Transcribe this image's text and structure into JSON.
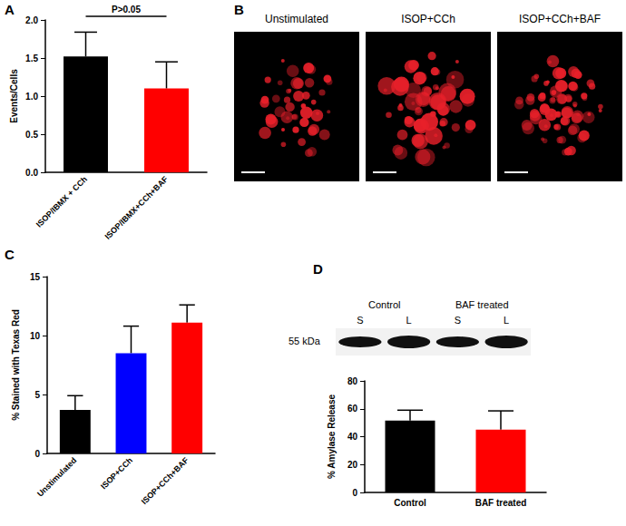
{
  "chart_data": [
    {
      "type": "bar",
      "panel": "A",
      "categories": [
        "ISOP/IBMX + CCh",
        "ISOP/IBMX+CCh+BAF"
      ],
      "values": [
        1.52,
        1.1
      ],
      "errors": [
        0.32,
        0.35
      ],
      "colors": [
        "#000000",
        "#ff0000"
      ],
      "y_label": "Events/Cells",
      "annotation": "P>0.05",
      "ylim": [
        0,
        2.0
      ],
      "yticks": [
        {
          "value": 0,
          "label": "0.0"
        },
        {
          "value": 0.5,
          "label": "0.5"
        },
        {
          "value": 1,
          "label": "1.0"
        },
        {
          "value": 1.5,
          "label": "1.5"
        },
        {
          "value": 2,
          "label": "2.0"
        }
      ],
      "grid": false
    },
    {
      "type": "bar",
      "panel": "C",
      "categories": [
        "Unstimulated",
        "ISOP+CCh",
        "ISOP+CCh+BAF"
      ],
      "values": [
        3.7,
        8.5,
        11.1
      ],
      "errors": [
        1.2,
        2.3,
        1.5
      ],
      "colors": [
        "#000000",
        "#0000ff",
        "#ff0000"
      ],
      "y_label": "% Stained with Texas Red",
      "ylim": [
        0,
        15
      ],
      "yticks": [
        0,
        5,
        10,
        15
      ],
      "grid": false
    },
    {
      "type": "bar",
      "panel": "D",
      "categories": [
        "Control",
        "BAF treated"
      ],
      "values": [
        51.5,
        45
      ],
      "errors": [
        7.5,
        13.5
      ],
      "colors": [
        "#000000",
        "#ff0000"
      ],
      "y_label": "% Amylase Release",
      "ylim": [
        0,
        80
      ],
      "yticks": [
        0,
        20,
        40,
        60,
        80
      ],
      "grid": false
    }
  ],
  "images": {
    "panel": "B",
    "titles": [
      "Unstimulated",
      "ISOP+CCh",
      "ISOP+CCh+BAF"
    ]
  },
  "blot": {
    "groups": [
      "Control",
      "BAF treated"
    ],
    "lanes": [
      "S",
      "L",
      "S",
      "L"
    ],
    "size_label": "55 kDa"
  }
}
